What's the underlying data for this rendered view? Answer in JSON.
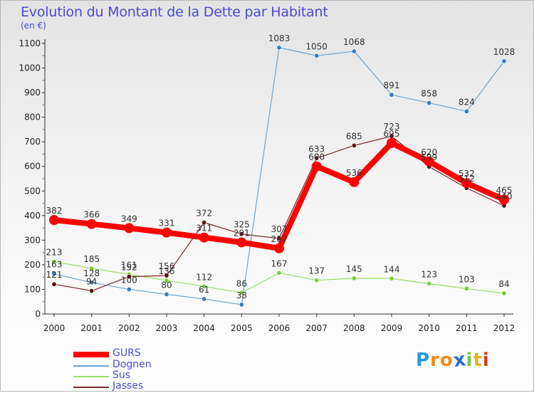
{
  "chart_data": {
    "type": "line",
    "title": "Evolution du Montant de la Dette par Habitant",
    "subtitle": "(en €)",
    "xlabel": "",
    "ylabel": "",
    "x": [
      "2000",
      "2001",
      "2002",
      "2003",
      "2004",
      "2005",
      "2006",
      "2007",
      "2008",
      "2009",
      "2010",
      "2011",
      "2012"
    ],
    "ylim": [
      0,
      1100
    ],
    "yticks": [
      0,
      100,
      200,
      300,
      400,
      500,
      600,
      700,
      800,
      900,
      1000,
      1100
    ],
    "grid": false,
    "legend_position": "bottom-left",
    "series": [
      {
        "name": "GURS",
        "color": "#ff0000",
        "values": [
          382,
          366,
          349,
          331,
          311,
          291,
          267,
          600,
          536,
          695,
          620,
          532,
          465
        ]
      },
      {
        "name": "Dognen",
        "color": "#6fa5cf",
        "values": [
          163,
          128,
          100,
          80,
          61,
          38,
          1083,
          1050,
          1068,
          891,
          858,
          824,
          1028
        ]
      },
      {
        "name": "Sus",
        "color": "#99dd66",
        "values": [
          213,
          185,
          161,
          136,
          112,
          86,
          167,
          137,
          145,
          144,
          123,
          103,
          84
        ]
      },
      {
        "name": "Jasses",
        "color": "#7a2a2a",
        "values": [
          121,
          94,
          152,
          156,
          372,
          325,
          307,
          633,
          685,
          723,
          599,
          512,
          440
        ]
      }
    ]
  },
  "brand": {
    "letters": [
      "P",
      "r",
      "o",
      "x",
      "i",
      "t",
      "i"
    ],
    "colors": [
      "#2a9ad8",
      "#f08a1a",
      "#f08a1a",
      "#2a6fd0",
      "#7cc43c",
      "#e8b020",
      "#d83a2a"
    ]
  }
}
